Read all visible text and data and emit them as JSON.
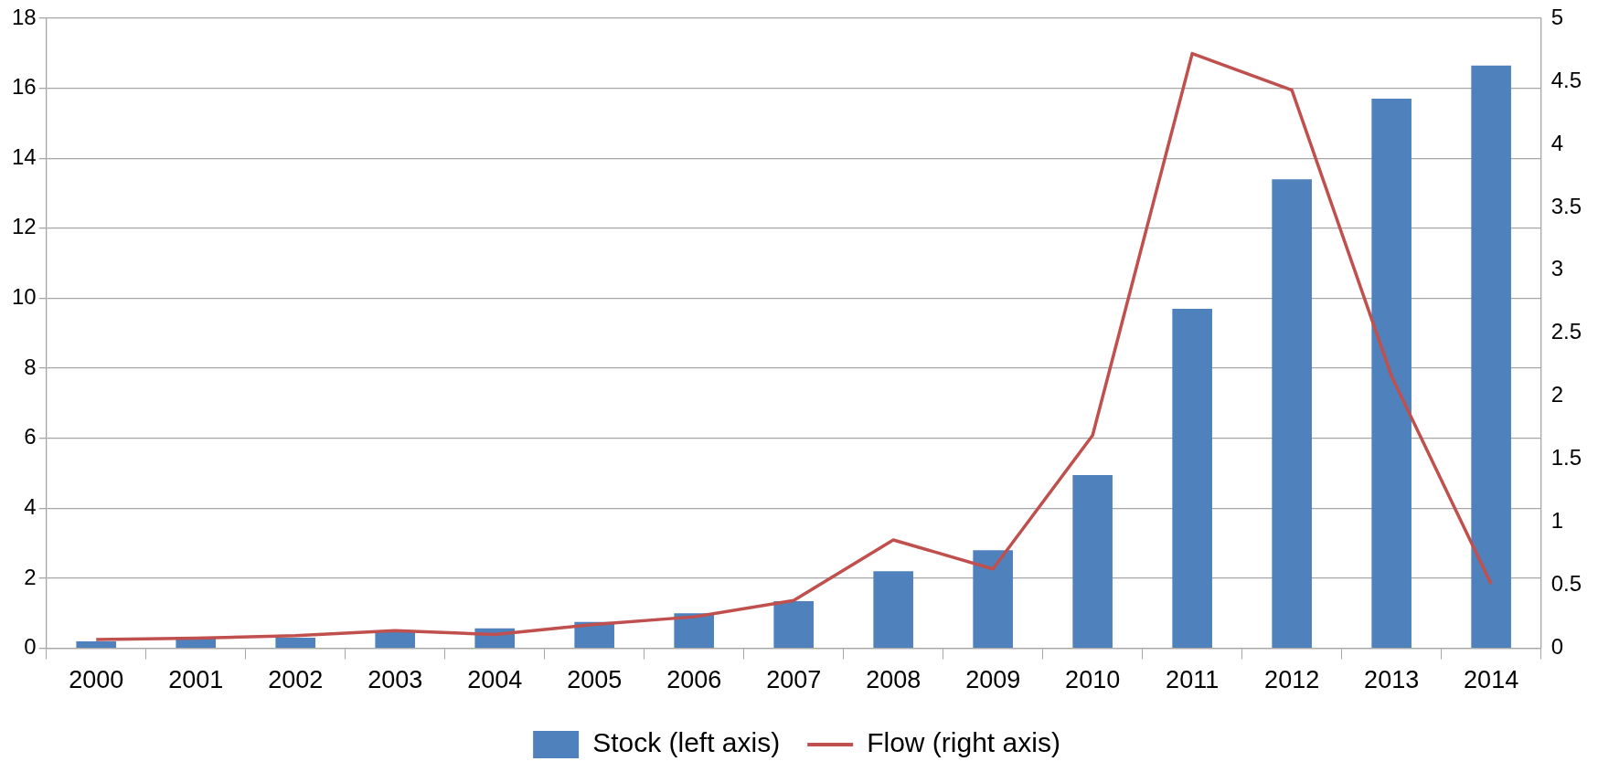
{
  "chart_data": {
    "type": "bar",
    "categories": [
      "2000",
      "2001",
      "2002",
      "2003",
      "2004",
      "2005",
      "2006",
      "2007",
      "2008",
      "2009",
      "2010",
      "2011",
      "2012",
      "2013",
      "2014"
    ],
    "series": [
      {
        "name": "Stock (left axis)",
        "color": "#4f81bd",
        "values": [
          0.2,
          0.3,
          0.3,
          0.5,
          0.57,
          0.75,
          1.0,
          1.35,
          2.2,
          2.8,
          4.95,
          9.7,
          13.4,
          15.7,
          16.65
        ]
      },
      {
        "name": "Flow (right axis)",
        "type": "line",
        "axis": "y2",
        "color": "#c0504d",
        "values": [
          0.07,
          0.08,
          0.1,
          0.14,
          0.11,
          0.19,
          0.25,
          0.38,
          0.86,
          0.63,
          1.69,
          4.72,
          4.43,
          2.16,
          0.51
        ]
      }
    ],
    "ylim": [
      0,
      18
    ],
    "yticks": [
      0,
      2,
      4,
      6,
      8,
      10,
      12,
      14,
      16,
      18
    ],
    "y2lim": [
      0,
      5
    ],
    "y2ticks": [
      0,
      0.5,
      1,
      1.5,
      2,
      2.5,
      3,
      3.5,
      4,
      4.5,
      5
    ],
    "grid": "y",
    "legend": "bottom",
    "marker": "none",
    "line_style": "solid"
  }
}
